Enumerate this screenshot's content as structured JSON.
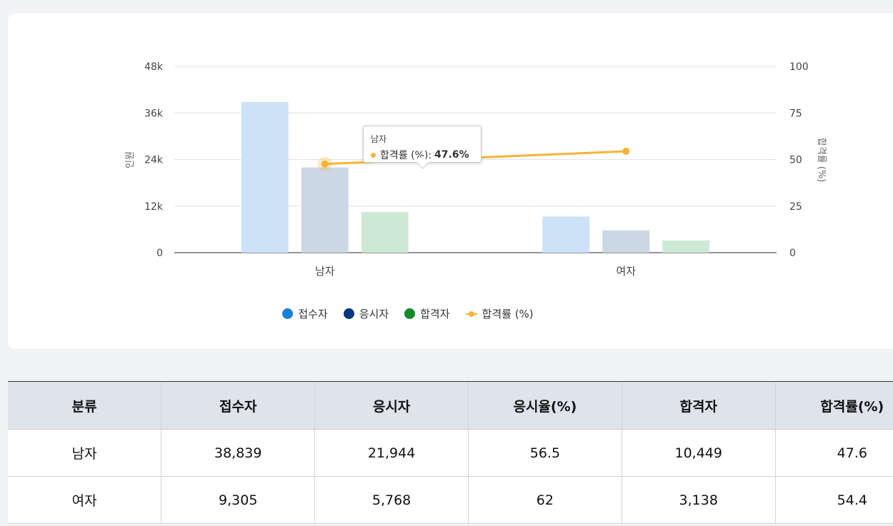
{
  "chart_data": {
    "type": "bar",
    "categories": [
      "남자",
      "여자"
    ],
    "series": [
      {
        "name": "접수자",
        "type": "bar",
        "axis": "left",
        "values": [
          38839,
          9305
        ],
        "color": "#1b7fd8",
        "fill": "#cde2f6"
      },
      {
        "name": "응시자",
        "type": "bar",
        "axis": "left",
        "values": [
          21944,
          5768
        ],
        "color": "#08357e",
        "fill": "#ccd7e5"
      },
      {
        "name": "합격자",
        "type": "bar",
        "axis": "left",
        "values": [
          10449,
          3138
        ],
        "color": "#128a27",
        "fill": "#cde9d4"
      },
      {
        "name": "합격률 (%)",
        "type": "line",
        "axis": "right",
        "values": [
          47.6,
          54.4
        ],
        "color": "#f5b437"
      }
    ],
    "ylabel": "인원",
    "y2label": "합격률 (%)",
    "ylim": [
      0,
      48000
    ],
    "y2lim": [
      0,
      100
    ],
    "yticks": [
      "0",
      "12k",
      "24k",
      "36k",
      "48k"
    ],
    "y2ticks": [
      "0",
      "25",
      "50",
      "75",
      "100"
    ],
    "grid": true,
    "legend_position": "bottom",
    "tooltip": {
      "title": "남자",
      "label": "합격률 (%):",
      "value": "47.6%"
    }
  },
  "table": {
    "headers": [
      "분류",
      "접수자",
      "응시자",
      "응시율(%)",
      "합격자",
      "합격률(%)"
    ],
    "rows": [
      [
        "남자",
        "38,839",
        "21,944",
        "56.5",
        "10,449",
        "47.6"
      ],
      [
        "여자",
        "9,305",
        "5,768",
        "62",
        "3,138",
        "54.4"
      ]
    ]
  }
}
